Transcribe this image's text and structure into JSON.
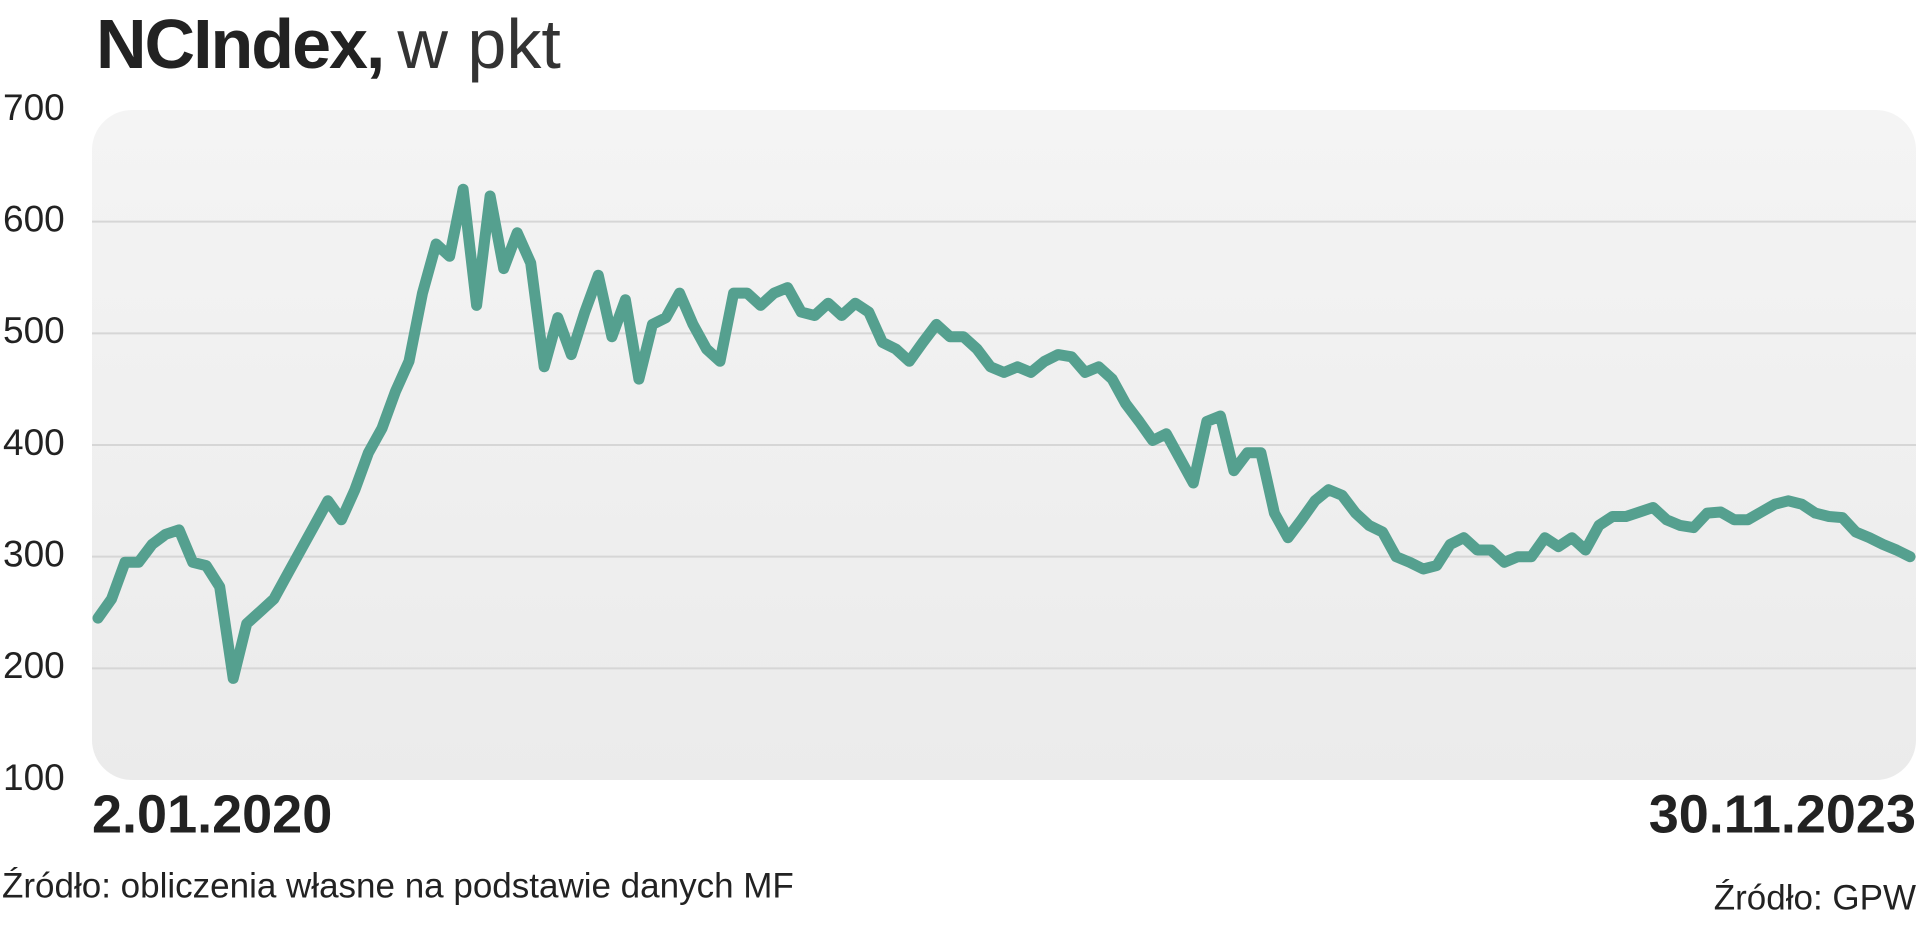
{
  "chart_data": {
    "type": "line",
    "title": "NCIndex,",
    "title_unit": "w pkt",
    "categories": [
      "2.01.2020",
      null,
      null,
      null,
      null,
      null,
      null,
      null,
      null,
      null,
      null,
      null,
      null,
      null,
      null,
      null,
      null,
      null,
      null,
      null,
      null,
      null,
      null,
      null,
      null,
      null,
      null,
      null,
      null,
      null,
      null,
      null,
      null,
      null,
      null,
      null,
      null,
      null,
      null,
      null,
      null,
      null,
      null,
      null,
      null,
      null,
      null,
      null,
      null,
      null,
      null,
      null,
      null,
      null,
      null,
      null,
      null,
      null,
      null,
      null,
      null,
      null,
      null,
      null,
      null,
      null,
      null,
      null,
      null,
      null,
      null,
      null,
      null,
      null,
      null,
      null,
      null,
      null,
      null,
      null,
      null,
      null,
      null,
      null,
      null,
      null,
      null,
      null,
      null,
      null,
      null,
      null,
      null,
      null,
      null,
      null,
      null,
      null,
      null,
      null,
      null,
      null,
      null,
      null,
      null,
      null,
      null,
      null,
      null,
      null,
      null,
      null,
      null,
      null,
      null,
      null,
      null,
      null,
      null,
      null,
      null,
      null,
      null,
      null,
      null,
      null,
      null,
      null,
      null,
      null,
      null,
      null,
      null,
      null,
      "30.11.2023"
    ],
    "values": [
      245,
      262,
      295,
      295,
      311,
      320,
      324,
      295,
      292,
      273,
      191,
      240,
      251,
      262,
      284,
      306,
      328,
      350,
      333,
      360,
      393,
      415,
      448,
      475,
      536,
      580,
      569,
      629,
      525,
      623,
      558,
      590,
      563,
      470,
      514,
      481,
      519,
      552,
      497,
      530,
      459,
      508,
      514,
      536,
      508,
      486,
      475,
      536,
      536,
      525,
      536,
      541,
      519,
      516,
      527,
      516,
      527,
      519,
      492,
      486,
      475,
      492,
      508,
      497,
      497,
      486,
      470,
      465,
      470,
      465,
      475,
      481,
      479,
      465,
      470,
      459,
      437,
      421,
      404,
      410,
      388,
      366,
      421,
      426,
      377,
      393,
      393,
      339,
      317,
      333,
      350,
      360,
      355,
      339,
      328,
      322,
      300,
      295,
      289,
      292,
      311,
      317,
      306,
      306,
      295,
      300,
      300,
      317,
      309,
      317,
      306,
      328,
      336,
      336,
      340,
      344,
      333,
      328,
      326,
      339,
      340,
      333,
      333,
      340,
      347,
      350,
      347,
      339,
      336,
      335,
      322,
      317,
      311,
      306,
      300
    ],
    "color": "#55a08f",
    "ylim": [
      100,
      700
    ],
    "yticks": [
      100,
      200,
      300,
      400,
      500,
      600,
      700
    ],
    "grid": true,
    "source_left": "Źródło: obliczenia własne na podstawie danych MF",
    "source_right": "Źródło: GPW"
  }
}
